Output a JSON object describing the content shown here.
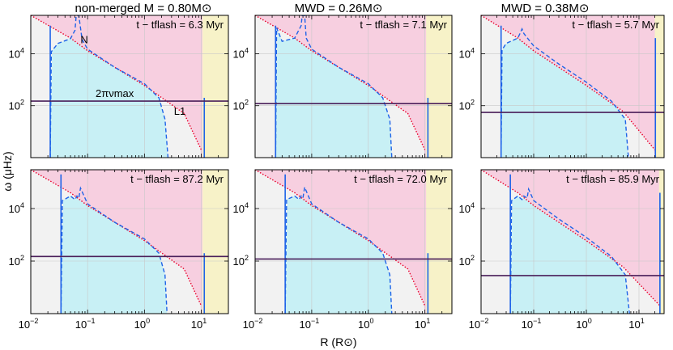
{
  "figure": {
    "ylabel": "ω (μHz)",
    "xlabel": "R (R⊙)",
    "columns": [
      {
        "title": "non-merged M = 0.80M⊙"
      },
      {
        "title": "MWD = 0.26M⊙"
      },
      {
        "title": "MWD = 0.38M⊙"
      }
    ],
    "annotations": {
      "nu_max_label": "2πνmax",
      "lamb_label": "L1",
      "bv_label": "N"
    },
    "colors": {
      "evanescent": "#f2f2f2",
      "p_mode": "#f7cfe0",
      "g_mode": "#c8f0f5",
      "envelope": "#f7f2c8",
      "bv_line": "#1e63e8",
      "lamb_line": "#e8002a",
      "numax_line": "#4a1f5a"
    }
  },
  "chart_data": [
    {
      "panel": "top-left",
      "type": "line",
      "title": "non-merged M = 0.80M⊙",
      "time_label": "t − tflash = 6.3 Myr",
      "xscale": "log",
      "yscale": "log",
      "xlim": [
        0.01,
        30
      ],
      "ylim": [
        1,
        300000
      ],
      "core_edge_R": 0.022,
      "envelope_base_R": 10.5,
      "surface_R": 11.3,
      "nu_max_omega": 150,
      "lamb_L1": {
        "x": [
          0.01,
          0.05,
          0.1,
          1,
          5,
          10
        ],
        "y": [
          300000,
          40000,
          13000,
          600,
          50,
          2
        ]
      },
      "N": {
        "x": [
          0.022,
          0.023,
          0.03,
          0.05,
          0.06,
          0.063,
          0.07,
          0.08,
          0.1,
          0.3,
          1,
          1.8,
          2.3,
          2.6
        ],
        "y": [
          1,
          12000,
          25000,
          38000,
          80000,
          300000,
          300000,
          35000,
          15000,
          3000,
          700,
          200,
          30,
          1
        ]
      }
    },
    {
      "panel": "top-middle",
      "type": "line",
      "title": "MWD = 0.26M⊙",
      "time_label": "t − tflash = 7.1 Myr",
      "xscale": "log",
      "yscale": "log",
      "xlim": [
        0.01,
        30
      ],
      "ylim": [
        1,
        300000
      ],
      "core_edge_R": 0.023,
      "envelope_base_R": 10.5,
      "surface_R": 11.3,
      "nu_max_omega": 120,
      "lamb_L1": {
        "x": [
          0.01,
          0.05,
          0.1,
          1,
          5,
          10
        ],
        "y": [
          300000,
          40000,
          13000,
          600,
          50,
          2
        ]
      },
      "N": {
        "x": [
          0.023,
          0.024,
          0.03,
          0.05,
          0.065,
          0.068,
          0.075,
          0.08,
          0.1,
          0.3,
          1,
          1.8,
          2.4,
          2.6
        ],
        "y": [
          1,
          100000,
          30000,
          40000,
          120000,
          300000,
          300000,
          40000,
          15000,
          3000,
          700,
          200,
          30,
          1
        ]
      }
    },
    {
      "panel": "top-right",
      "type": "line",
      "title": "MWD = 0.38M⊙",
      "time_label": "t − tflash = 5.7 Myr",
      "xscale": "log",
      "yscale": "log",
      "xlim": [
        0.01,
        30
      ],
      "ylim": [
        1,
        300000
      ],
      "core_edge_R": 0.024,
      "envelope_base_R": 20,
      "surface_R": 20.5,
      "nu_max_omega": 55,
      "lamb_L1": {
        "x": [
          0.01,
          0.05,
          0.1,
          1,
          5,
          20
        ],
        "y": [
          300000,
          40000,
          13000,
          600,
          60,
          2
        ]
      },
      "N": {
        "x": [
          0.024,
          0.025,
          0.03,
          0.05,
          0.06,
          0.065,
          0.08,
          0.1,
          0.3,
          1,
          3,
          5.5,
          6.3
        ],
        "y": [
          1,
          14000,
          25000,
          40000,
          90000,
          60000,
          35000,
          20000,
          4000,
          800,
          150,
          30,
          1
        ]
      }
    },
    {
      "panel": "bottom-left",
      "type": "line",
      "title": "non-merged M = 0.80M⊙",
      "time_label": "t − tflash = 87.2 Myr",
      "xscale": "log",
      "yscale": "log",
      "xlim": [
        0.01,
        30
      ],
      "ylim": [
        1,
        300000
      ],
      "core_edge_R": 0.034,
      "envelope_base_R": 10.5,
      "surface_R": 11.3,
      "nu_max_omega": 150,
      "lamb_L1": {
        "x": [
          0.01,
          0.05,
          0.1,
          1,
          5,
          10
        ],
        "y": [
          300000,
          40000,
          13000,
          600,
          50,
          2
        ]
      },
      "N": {
        "x": [
          0.034,
          0.036,
          0.05,
          0.06,
          0.065,
          0.07,
          0.075,
          0.1,
          0.3,
          1,
          1.8,
          2.3,
          2.5
        ],
        "y": [
          1,
          20000,
          30000,
          22000,
          30000,
          25000,
          60000,
          15000,
          3000,
          700,
          200,
          30,
          1
        ]
      }
    },
    {
      "panel": "bottom-middle",
      "type": "line",
      "title": "MWD = 0.26M⊙",
      "time_label": "t − tflash = 72.0 Myr",
      "xscale": "log",
      "yscale": "log",
      "xlim": [
        0.01,
        30
      ],
      "ylim": [
        1,
        300000
      ],
      "core_edge_R": 0.034,
      "envelope_base_R": 10.5,
      "surface_R": 11.3,
      "nu_max_omega": 120,
      "lamb_L1": {
        "x": [
          0.01,
          0.05,
          0.1,
          1,
          5,
          10
        ],
        "y": [
          300000,
          40000,
          13000,
          600,
          50,
          2
        ]
      },
      "N": {
        "x": [
          0.034,
          0.036,
          0.05,
          0.06,
          0.065,
          0.07,
          0.075,
          0.1,
          0.3,
          1,
          1.8,
          2.4,
          2.6
        ],
        "y": [
          1,
          22000,
          30000,
          22000,
          30000,
          25000,
          65000,
          15000,
          3000,
          700,
          200,
          30,
          1
        ]
      }
    },
    {
      "panel": "bottom-right",
      "type": "line",
      "title": "MWD = 0.38M⊙",
      "time_label": "t − tflash = 85.9 Myr",
      "xscale": "log",
      "yscale": "log",
      "xlim": [
        0.01,
        30
      ],
      "ylim": [
        1,
        300000
      ],
      "core_edge_R": 0.036,
      "envelope_base_R": 24,
      "surface_R": 25,
      "nu_max_omega": 28,
      "lamb_L1": {
        "x": [
          0.01,
          0.05,
          0.1,
          1,
          5,
          25
        ],
        "y": [
          300000,
          40000,
          13000,
          600,
          60,
          2
        ]
      },
      "N": {
        "x": [
          0.036,
          0.038,
          0.05,
          0.06,
          0.065,
          0.075,
          0.08,
          0.1,
          0.3,
          1,
          3,
          5.5,
          6.6
        ],
        "y": [
          1,
          20000,
          30000,
          22000,
          30000,
          25000,
          55000,
          20000,
          4000,
          800,
          150,
          30,
          1
        ]
      }
    }
  ]
}
